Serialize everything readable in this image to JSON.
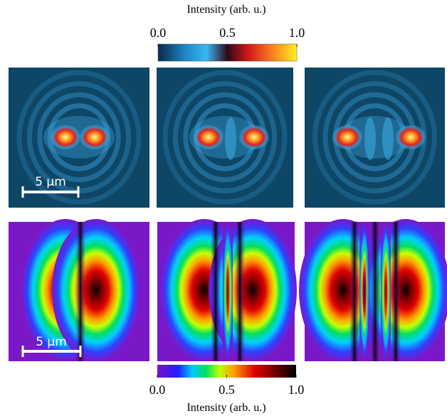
{
  "top_colorbar": {
    "title": "Intensity (arb. u.)",
    "range": [
      0,
      1
    ],
    "ticks": [
      {
        "value": 0,
        "label": "0.0"
      },
      {
        "value": 0.5,
        "label": "0.5"
      },
      {
        "value": 1,
        "label": "1.0"
      }
    ]
  },
  "bottom_colorbar": {
    "title": "Intensity (arb. u.)",
    "range": [
      0,
      1
    ],
    "ticks": [
      {
        "value": 0,
        "label": "0.0"
      },
      {
        "value": 0.5,
        "label": "0.5"
      },
      {
        "value": 1,
        "label": "1.0"
      }
    ]
  },
  "scale_bars": {
    "top": "5 μm",
    "bottom": "5 μm"
  }
}
